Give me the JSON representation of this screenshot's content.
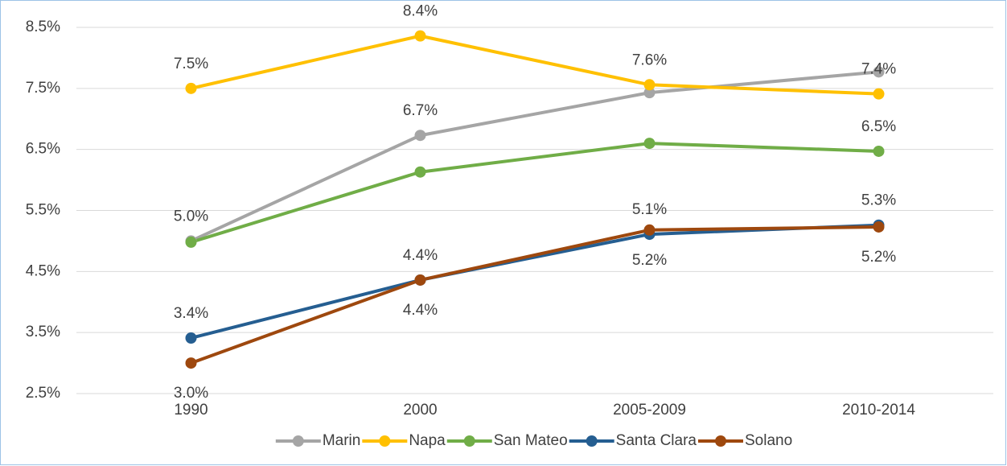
{
  "chart_data": {
    "type": "line",
    "categories": [
      "1990",
      "2000",
      "2005-2009",
      "2010-2014"
    ],
    "series": [
      {
        "name": "Marin",
        "color": "#a5a5a5",
        "values": [
          5.0,
          6.73,
          7.43,
          7.77
        ],
        "value_labels": [
          "5.0%",
          "6.7%",
          null,
          null
        ]
      },
      {
        "name": "Napa",
        "color": "#ffc000",
        "values": [
          7.5,
          8.36,
          7.56,
          7.41
        ],
        "value_labels": [
          "7.5%",
          "8.4%",
          "7.6%",
          "7.4%"
        ]
      },
      {
        "name": "San Mateo",
        "color": "#70ad47",
        "values": [
          4.98,
          6.13,
          6.6,
          6.47
        ],
        "value_labels": [
          null,
          null,
          null,
          "6.5%"
        ]
      },
      {
        "name": "Santa Clara",
        "color": "#255e91",
        "values": [
          3.41,
          4.36,
          5.11,
          5.26
        ],
        "value_labels": [
          "3.4%",
          "4.4%",
          "5.1%",
          "5.3%"
        ]
      },
      {
        "name": "Solano",
        "color": "#9e480e",
        "values": [
          3.0,
          4.36,
          5.18,
          5.23
        ],
        "value_labels": [
          "3.0%",
          "4.4%",
          "5.2%",
          "5.2%"
        ]
      }
    ],
    "ylim": [
      2.5,
      8.5
    ],
    "yticks": [
      {
        "value": 2.5,
        "label": "2.5%"
      },
      {
        "value": 3.5,
        "label": "3.5%"
      },
      {
        "value": 4.5,
        "label": "4.5%"
      },
      {
        "value": 5.5,
        "label": "5.5%"
      },
      {
        "value": 6.5,
        "label": "6.5%"
      },
      {
        "value": 7.5,
        "label": "7.5%"
      },
      {
        "value": 8.5,
        "label": "8.5%"
      }
    ],
    "grid": true,
    "legend": "bottom"
  }
}
